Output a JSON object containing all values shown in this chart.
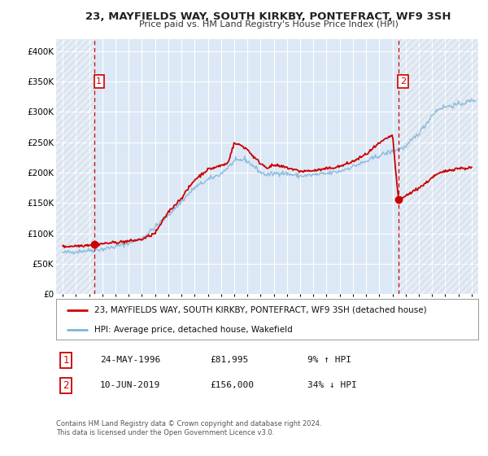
{
  "title": "23, MAYFIELDS WAY, SOUTH KIRKBY, PONTEFRACT, WF9 3SH",
  "subtitle": "Price paid vs. HM Land Registry's House Price Index (HPI)",
  "background_color": "#ffffff",
  "plot_bg_color": "#dce8f5",
  "grid_color": "#ffffff",
  "hpi_color": "#7fb3d9",
  "price_color": "#cc0000",
  "marker1_price": 81995,
  "marker1_x": 1996.39,
  "marker2_price": 156000,
  "marker2_x": 2019.44,
  "ylim": [
    0,
    420000
  ],
  "xlim": [
    1993.5,
    2025.5
  ],
  "legend_label_price": "23, MAYFIELDS WAY, SOUTH KIRKBY, PONTEFRACT, WF9 3SH (detached house)",
  "legend_label_hpi": "HPI: Average price, detached house, Wakefield",
  "sale1_date_text": "24-MAY-1996",
  "sale1_price_text": "£81,995",
  "sale1_hpi_text": "9% ↑ HPI",
  "sale2_date_text": "10-JUN-2019",
  "sale2_price_text": "£156,000",
  "sale2_hpi_text": "34% ↓ HPI",
  "footer1": "Contains HM Land Registry data © Crown copyright and database right 2024.",
  "footer2": "This data is licensed under the Open Government Licence v3.0.",
  "hpi_anchors_x": [
    1994.0,
    1995.0,
    1996.0,
    1997.0,
    1998.0,
    1999.0,
    2000.0,
    2001.0,
    2002.0,
    2003.0,
    2004.0,
    2005.0,
    2006.0,
    2007.0,
    2007.8,
    2008.5,
    2009.0,
    2009.5,
    2010.0,
    2010.5,
    2011.0,
    2012.0,
    2013.0,
    2014.0,
    2015.0,
    2016.0,
    2017.0,
    2018.0,
    2019.0,
    2019.44,
    2020.0,
    2021.0,
    2021.5,
    2022.0,
    2022.5,
    2023.0,
    2023.5,
    2024.0,
    2024.5,
    2025.3
  ],
  "hpi_anchors_y": [
    68000,
    70000,
    72000,
    74000,
    78000,
    84000,
    92000,
    110000,
    130000,
    152000,
    175000,
    188000,
    198000,
    218000,
    222000,
    210000,
    200000,
    196000,
    198000,
    200000,
    198000,
    194000,
    196000,
    198000,
    202000,
    210000,
    218000,
    228000,
    235000,
    238000,
    242000,
    265000,
    278000,
    295000,
    305000,
    308000,
    310000,
    312000,
    315000,
    320000
  ],
  "price_anchors_x": [
    1994.0,
    1995.5,
    1996.0,
    1996.39,
    1997.0,
    1998.0,
    1999.0,
    2000.0,
    2001.0,
    2002.0,
    2003.0,
    2004.0,
    2005.0,
    2005.5,
    2006.5,
    2007.0,
    2007.5,
    2008.0,
    2008.5,
    2009.0,
    2009.5,
    2010.0,
    2010.5,
    2011.0,
    2012.0,
    2013.0,
    2014.0,
    2015.0,
    2016.0,
    2017.0,
    2018.0,
    2018.5,
    2019.0,
    2019.44,
    2019.8,
    2020.0,
    2020.5,
    2021.0,
    2021.5,
    2022.0,
    2022.5,
    2023.0,
    2023.5,
    2024.0,
    2024.5,
    2025.0
  ],
  "price_anchors_y": [
    78000,
    80000,
    81000,
    81995,
    83000,
    85000,
    87000,
    90000,
    100000,
    135000,
    158000,
    188000,
    205000,
    208000,
    215000,
    248000,
    245000,
    238000,
    225000,
    215000,
    208000,
    212000,
    210000,
    208000,
    202000,
    203000,
    206000,
    210000,
    218000,
    230000,
    248000,
    255000,
    262000,
    156000,
    158000,
    162000,
    168000,
    175000,
    182000,
    192000,
    198000,
    202000,
    205000,
    207000,
    207000,
    208000
  ]
}
